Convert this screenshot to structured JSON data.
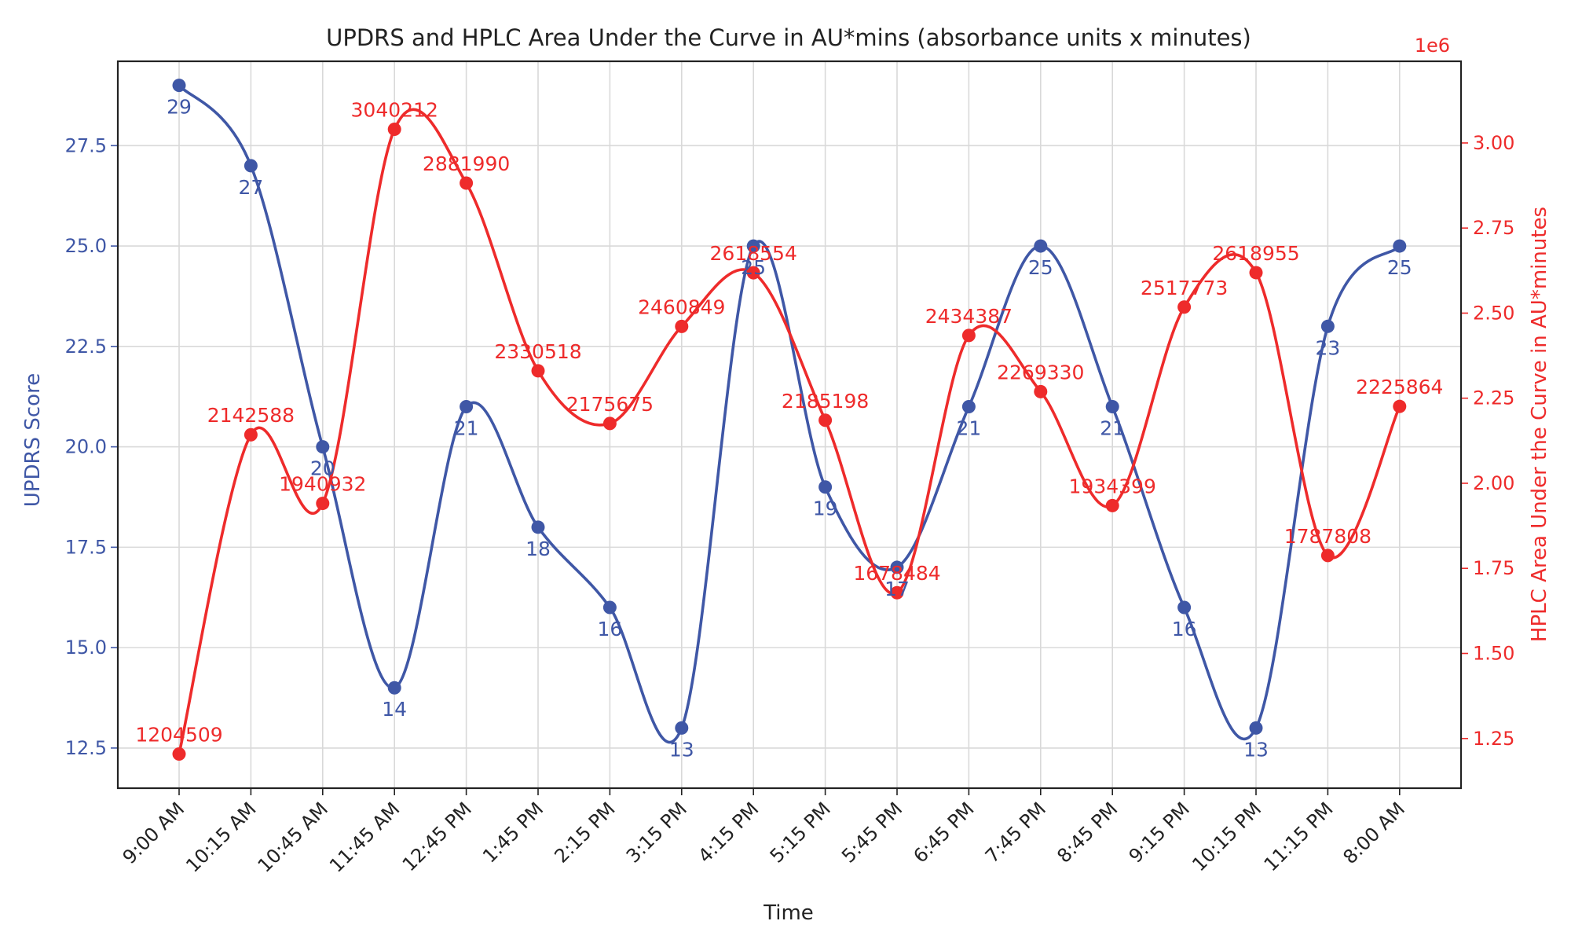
{
  "chart_data": {
    "type": "line",
    "title": "UPDRS and HPLC Area Under the Curve in AU*mins (absorbance units x minutes)",
    "xlabel": "Time",
    "ylabel_left": "UPDRS Score",
    "ylabel_right": "HPLC Area Under the Curve in AU*minutes",
    "right_axis_multiplier": "1e6",
    "categories": [
      "9:00 AM",
      "10:15 AM",
      "10:45 AM",
      "11:45 AM",
      "12:45 PM",
      "1:45 PM",
      "2:15 PM",
      "3:15 PM",
      "4:15 PM",
      "5:15 PM",
      "5:45 PM",
      "6:45 PM",
      "7:45 PM",
      "8:45 PM",
      "9:15 PM",
      "10:15 PM",
      "11:15 PM",
      "8:00 AM"
    ],
    "left_ylim": [
      11.5,
      29.6
    ],
    "left_yticks": [
      "12.5",
      "15.0",
      "17.5",
      "20.0",
      "22.5",
      "25.0",
      "27.5"
    ],
    "right_ylim": [
      1.104,
      3.24
    ],
    "right_yticks": [
      "1.25",
      "1.50",
      "1.75",
      "2.00",
      "2.25",
      "2.50",
      "2.75",
      "3.00"
    ],
    "grid": true,
    "series": [
      {
        "axis": "left",
        "color": "#3f57a6",
        "values": [
          29,
          27,
          20,
          14,
          21,
          18,
          16,
          13,
          25,
          19,
          17,
          21,
          25,
          21,
          16,
          13,
          23,
          25
        ],
        "labels": [
          "29",
          "27",
          "20",
          "14",
          "21",
          "18",
          "16",
          "13",
          "25",
          "19",
          "17",
          "21",
          "25",
          "21",
          "16",
          "13",
          "23",
          "25"
        ]
      },
      {
        "axis": "right",
        "color": "#ee2b2b",
        "values": [
          1204509,
          2142588,
          1940932,
          3040212,
          2881990,
          2330518,
          2175675,
          2460849,
          2618554,
          2185198,
          1678484,
          2434387,
          2269330,
          1934399,
          2517773,
          2618955,
          1787808,
          2225864
        ],
        "labels": [
          "1204509",
          "2142588",
          "1940932",
          "3040212",
          "2881990",
          "2330518",
          "2175675",
          "2460849",
          "2618554",
          "2185198",
          "1678484",
          "2434387",
          "2269330",
          "1934399",
          "2517773",
          "2618955",
          "1787808",
          "2225864"
        ]
      }
    ]
  }
}
